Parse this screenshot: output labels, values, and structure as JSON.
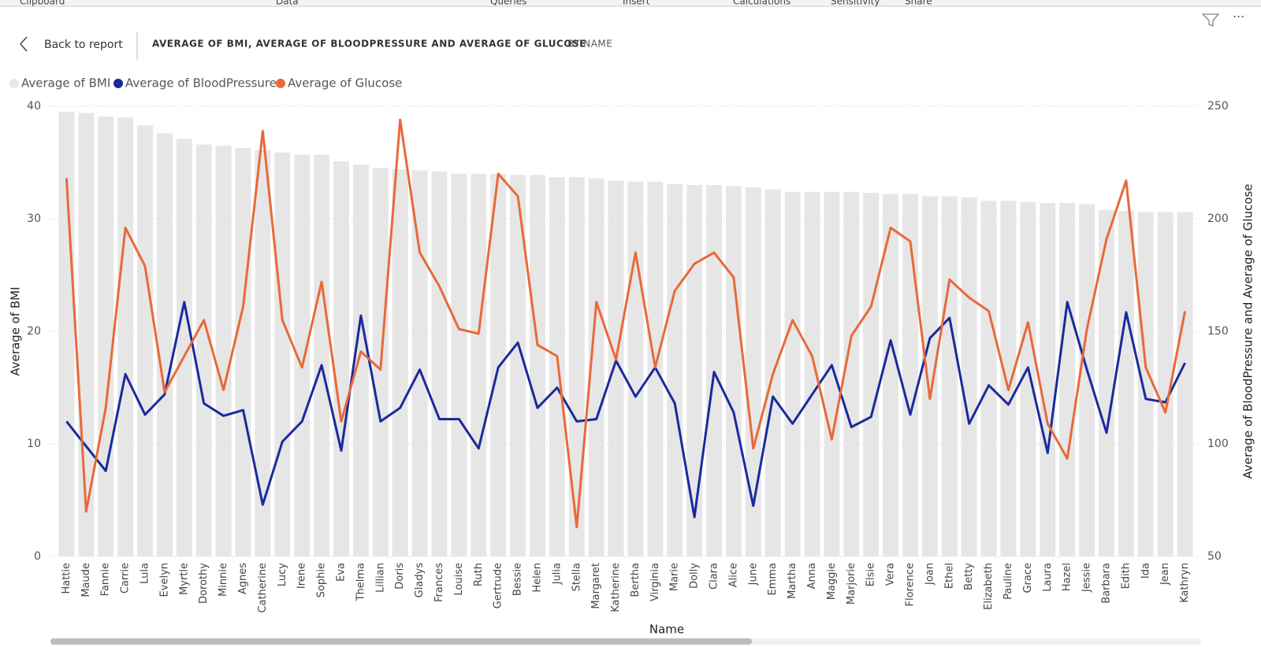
{
  "ribbon": [
    "Clipboard",
    "Data",
    "Queries",
    "Insert",
    "Calculations",
    "Sensitivity",
    "Share"
  ],
  "header": {
    "back": "Back to report",
    "title": "AVERAGE OF BMI, AVERAGE OF BLOODPRESSURE AND AVERAGE OF GLUCOSE",
    "subtitle": "BY NAME"
  },
  "chart_data": {
    "type": "combo",
    "x_label": "Name",
    "y_label": "Average of BMI",
    "y2_label": "Average of BloodPressure and Average of Glucose",
    "categories": [
      "Hattie",
      "Maude",
      "Fannie",
      "Carrie",
      "Lula",
      "Evelyn",
      "Myrtle",
      "Dorothy",
      "Minnie",
      "Agnes",
      "Catherine",
      "Lucy",
      "Irene",
      "Sophie",
      "Eva",
      "Thelma",
      "Lillian",
      "Doris",
      "Gladys",
      "Frances",
      "Louise",
      "Ruth",
      "Gertrude",
      "Bessie",
      "Helen",
      "Julia",
      "Stella",
      "Margaret",
      "Katherine",
      "Bertha",
      "Virginia",
      "Marie",
      "Dolly",
      "Clara",
      "Alice",
      "June",
      "Emma",
      "Martha",
      "Anna",
      "Maggie",
      "Marjorie",
      "Elsie",
      "Vera",
      "Florence",
      "Joan",
      "Ethel",
      "Betty",
      "Elizabeth",
      "Pauline",
      "Grace",
      "Laura",
      "Hazel",
      "Jessie",
      "Barbara",
      "Edith",
      "Ida",
      "Jean",
      "Kathryn"
    ],
    "series": [
      {
        "name": "Average of BMI",
        "type": "bar",
        "color": "#e6e6e6",
        "values": [
          39.5,
          39.4,
          39.1,
          39.0,
          38.3,
          37.6,
          37.1,
          36.6,
          36.5,
          36.3,
          36.1,
          35.9,
          35.7,
          35.7,
          35.1,
          34.8,
          34.5,
          34.4,
          34.3,
          34.2,
          34.0,
          34.0,
          34.0,
          33.9,
          33.9,
          33.7,
          33.7,
          33.6,
          33.4,
          33.3,
          33.3,
          33.1,
          33.0,
          33.0,
          32.9,
          32.8,
          32.6,
          32.4,
          32.4,
          32.4,
          32.4,
          32.3,
          32.2,
          32.2,
          32.0,
          32.0,
          31.9,
          31.6,
          31.6,
          31.5,
          31.4,
          31.4,
          31.3,
          30.8,
          30.7,
          30.6,
          30.6,
          30.6
        ]
      },
      {
        "name": "Average of BloodPressure",
        "type": "line",
        "axis": "y2",
        "color": "#1a2a9c",
        "values": [
          110,
          99,
          88,
          131,
          113,
          122,
          163,
          118,
          112.5,
          115,
          73,
          101,
          110,
          135,
          97,
          157,
          110,
          116,
          133,
          111,
          111,
          98,
          134,
          145,
          116,
          125,
          110,
          111,
          137,
          121,
          134,
          118,
          67.5,
          132,
          114,
          72.5,
          121,
          109,
          122,
          135,
          107.5,
          112,
          146,
          113,
          147,
          156,
          109,
          126,
          117.5,
          134,
          96,
          163,
          133,
          105,
          158.5,
          120,
          118.5,
          136
        ]
      },
      {
        "name": "Average of Glucose",
        "type": "line",
        "axis": "y2",
        "color": "#e8693a",
        "values": [
          218,
          70,
          116,
          196,
          179,
          123,
          139,
          155,
          124,
          161,
          239,
          155,
          134,
          172,
          110,
          141,
          133,
          244,
          185,
          170,
          151,
          149,
          220,
          210,
          144,
          139,
          63,
          163,
          137.5,
          185,
          134,
          168,
          180,
          185,
          174,
          98,
          131,
          155,
          139,
          102,
          148,
          161,
          196,
          190,
          120,
          173,
          165,
          159,
          124,
          154,
          109,
          93.5,
          151,
          191,
          217,
          134,
          114,
          159
        ]
      }
    ],
    "ylim": [
      0,
      40
    ],
    "yticks": [
      0,
      10,
      20,
      30,
      40
    ],
    "y2lim": [
      50,
      250
    ],
    "y2ticks": [
      50,
      100,
      150,
      200,
      250
    ],
    "grid": true
  }
}
